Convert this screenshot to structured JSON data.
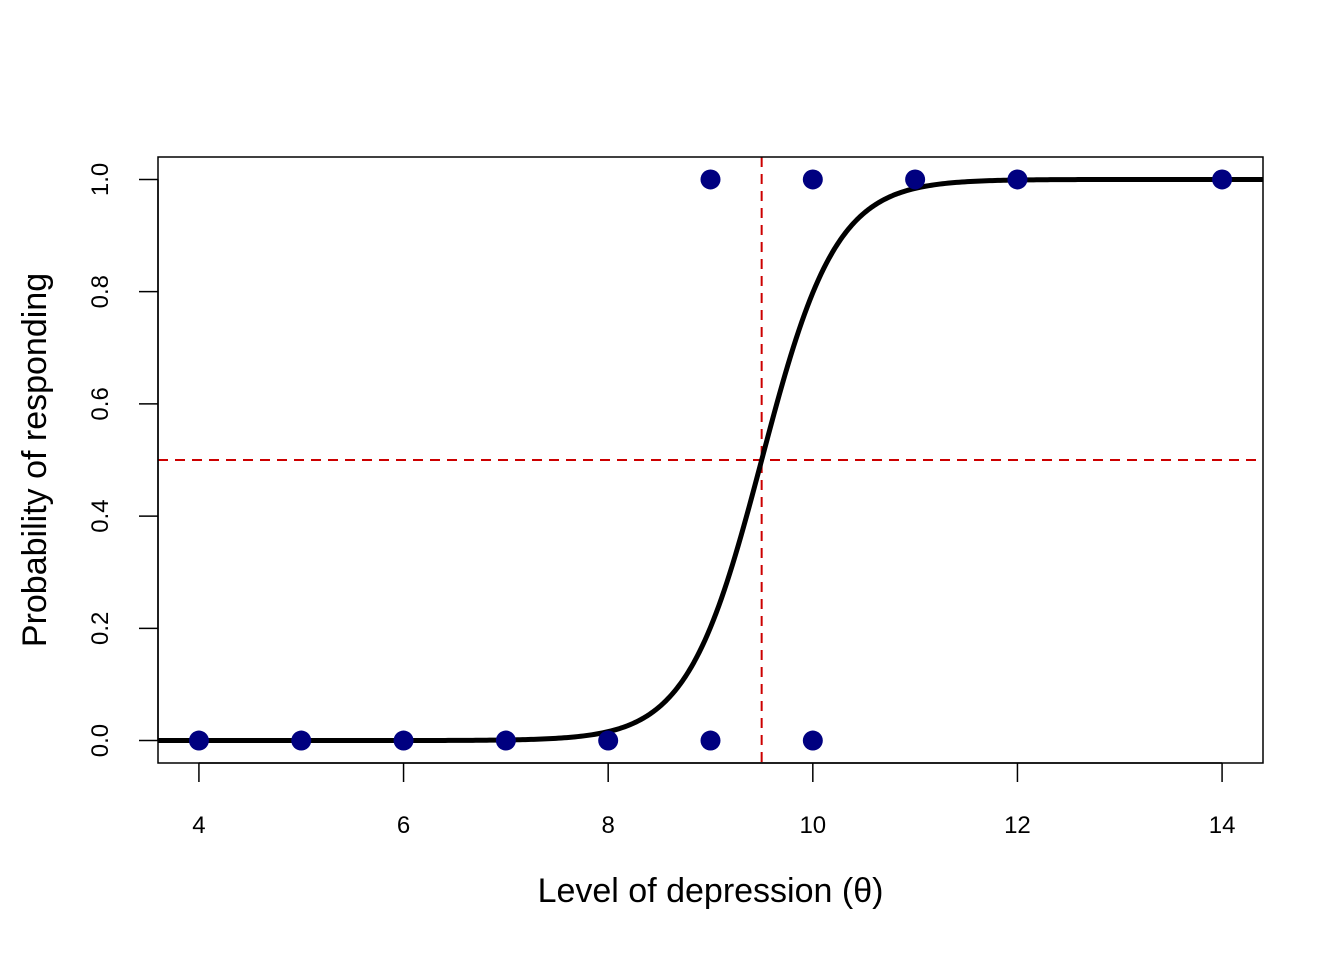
{
  "chart_data": {
    "type": "scatter",
    "title": "",
    "xlabel": "Level of depression (θ)",
    "ylabel": "Probability of responding",
    "xlim": [
      3.6,
      14.4
    ],
    "ylim": [
      -0.04,
      1.04
    ],
    "xticks": [
      4,
      6,
      8,
      10,
      12,
      14
    ],
    "xtick_labels": [
      "4",
      "6",
      "8",
      "10",
      "12",
      "14"
    ],
    "yticks": [
      0.0,
      0.2,
      0.4,
      0.6,
      0.8,
      1.0
    ],
    "ytick_labels": [
      "0.0",
      "0.2",
      "0.4",
      "0.6",
      "0.8",
      "1.0"
    ],
    "grid": false,
    "points": [
      {
        "x": 4,
        "y": 0
      },
      {
        "x": 5,
        "y": 0
      },
      {
        "x": 6,
        "y": 0
      },
      {
        "x": 7,
        "y": 0
      },
      {
        "x": 8,
        "y": 0
      },
      {
        "x": 9,
        "y": 0
      },
      {
        "x": 10,
        "y": 0
      },
      {
        "x": 9,
        "y": 1
      },
      {
        "x": 10,
        "y": 1
      },
      {
        "x": 11,
        "y": 1
      },
      {
        "x": 12,
        "y": 1
      },
      {
        "x": 14,
        "y": 1
      }
    ],
    "fitted_curve": {
      "type": "logistic",
      "midpoint": 9.5,
      "slope": 2.75
    },
    "reference_lines": {
      "vertical_x": 9.5,
      "horizontal_y": 0.5
    },
    "colors": {
      "points": "#000080",
      "curve": "#000000",
      "reference": "#cc0000"
    }
  }
}
